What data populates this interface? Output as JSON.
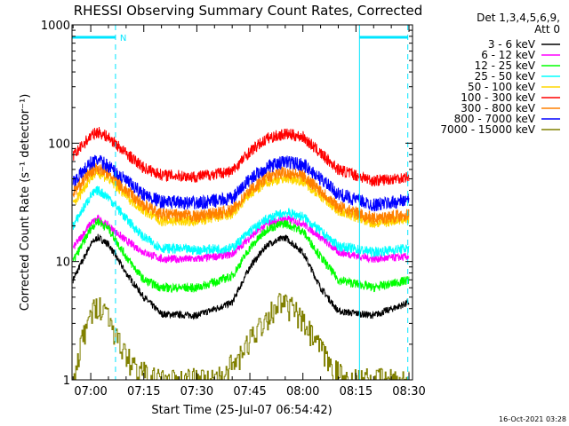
{
  "chart_data": {
    "type": "line",
    "title": "RHESSI Observing Summary Count Rates, Corrected",
    "xlabel": "Start Time (25-Jul-07 06:54:42)",
    "ylabel": "Corrected Count Rate (s⁻¹ detector⁻¹)",
    "yscale": "log",
    "ylim": [
      1,
      1000
    ],
    "xlim": [
      "06:54:42",
      "08:31:00"
    ],
    "x_ticks": [
      "07:00",
      "07:15",
      "07:30",
      "07:45",
      "08:00",
      "08:15",
      "08:30"
    ],
    "y_ticks": [
      "1",
      "10",
      "100",
      "1000"
    ],
    "legend_header": [
      "Det 1,3,4,5,6,9,",
      "Att 0"
    ],
    "legend_position": "right",
    "timestamp": "16-Oct-2021 03:28",
    "flag_label": "N",
    "flag_intervals": [
      {
        "start": "06:54:42",
        "end": "07:07:00"
      },
      {
        "start": "08:16:00",
        "end": "08:29:40"
      }
    ],
    "vertical_markers": [
      {
        "time": "06:54:42",
        "style": "solid"
      },
      {
        "time": "07:07:00",
        "style": "dashed"
      },
      {
        "time": "08:16:00",
        "style": "solid"
      },
      {
        "time": "08:29:40",
        "style": "dashed"
      }
    ],
    "series": [
      {
        "name": "3 - 6 keV",
        "color": "#000000",
        "points": [
          [
            "06:55",
            7
          ],
          [
            "07:00",
            14
          ],
          [
            "07:02",
            16
          ],
          [
            "07:05",
            14
          ],
          [
            "07:10",
            8
          ],
          [
            "07:15",
            5
          ],
          [
            "07:20",
            3.6
          ],
          [
            "07:30",
            3.5
          ],
          [
            "07:40",
            4.5
          ],
          [
            "07:45",
            9
          ],
          [
            "07:50",
            14
          ],
          [
            "07:55",
            16
          ],
          [
            "08:00",
            12
          ],
          [
            "08:05",
            6
          ],
          [
            "08:10",
            3.8
          ],
          [
            "08:20",
            3.5
          ],
          [
            "08:30",
            4.5
          ]
        ]
      },
      {
        "name": "6 - 12 keV",
        "color": "#ff00ff",
        "points": [
          [
            "06:55",
            13
          ],
          [
            "07:00",
            21
          ],
          [
            "07:02",
            23
          ],
          [
            "07:05",
            20
          ],
          [
            "07:10",
            15
          ],
          [
            "07:15",
            12
          ],
          [
            "07:20",
            10.5
          ],
          [
            "07:30",
            10.5
          ],
          [
            "07:40",
            11.5
          ],
          [
            "07:45",
            16
          ],
          [
            "07:50",
            21
          ],
          [
            "07:55",
            23
          ],
          [
            "08:00",
            21
          ],
          [
            "08:05",
            16
          ],
          [
            "08:10",
            12
          ],
          [
            "08:20",
            10.5
          ],
          [
            "08:30",
            11
          ]
        ]
      },
      {
        "name": "12 - 25 keV",
        "color": "#00ff00",
        "points": [
          [
            "06:55",
            10
          ],
          [
            "07:00",
            19
          ],
          [
            "07:02",
            22
          ],
          [
            "07:05",
            19
          ],
          [
            "07:10",
            11
          ],
          [
            "07:15",
            7
          ],
          [
            "07:20",
            6
          ],
          [
            "07:30",
            6
          ],
          [
            "07:40",
            7.5
          ],
          [
            "07:45",
            13
          ],
          [
            "07:50",
            19
          ],
          [
            "07:55",
            21
          ],
          [
            "08:00",
            18
          ],
          [
            "08:05",
            11
          ],
          [
            "08:10",
            7
          ],
          [
            "08:20",
            6
          ],
          [
            "08:30",
            7
          ]
        ]
      },
      {
        "name": "25 - 50 keV",
        "color": "#00ffff",
        "points": [
          [
            "06:55",
            20
          ],
          [
            "07:00",
            36
          ],
          [
            "07:02",
            40
          ],
          [
            "07:05",
            35
          ],
          [
            "07:10",
            23
          ],
          [
            "07:15",
            16
          ],
          [
            "07:20",
            13
          ],
          [
            "07:30",
            12.5
          ],
          [
            "07:40",
            13
          ],
          [
            "07:45",
            18
          ],
          [
            "07:50",
            23
          ],
          [
            "07:55",
            26
          ],
          [
            "08:00",
            24
          ],
          [
            "08:05",
            18
          ],
          [
            "08:10",
            13.5
          ],
          [
            "08:20",
            12
          ],
          [
            "08:30",
            13
          ]
        ]
      },
      {
        "name": "50 - 100 keV",
        "color": "#ffd700",
        "points": [
          [
            "06:55",
            30
          ],
          [
            "07:00",
            52
          ],
          [
            "07:02",
            57
          ],
          [
            "07:05",
            50
          ],
          [
            "07:10",
            36
          ],
          [
            "07:15",
            27
          ],
          [
            "07:20",
            22
          ],
          [
            "07:30",
            22
          ],
          [
            "07:40",
            25
          ],
          [
            "07:45",
            37
          ],
          [
            "07:50",
            47
          ],
          [
            "07:55",
            51
          ],
          [
            "08:00",
            48
          ],
          [
            "08:05",
            36
          ],
          [
            "08:10",
            27
          ],
          [
            "08:20",
            21
          ],
          [
            "08:30",
            23
          ]
        ]
      },
      {
        "name": "100 - 300 keV",
        "color": "#ff0000",
        "points": [
          [
            "06:55",
            78
          ],
          [
            "07:00",
            115
          ],
          [
            "07:02",
            125
          ],
          [
            "07:05",
            112
          ],
          [
            "07:10",
            82
          ],
          [
            "07:15",
            62
          ],
          [
            "07:20",
            54
          ],
          [
            "07:30",
            52
          ],
          [
            "07:40",
            58
          ],
          [
            "07:45",
            85
          ],
          [
            "07:50",
            110
          ],
          [
            "07:55",
            120
          ],
          [
            "08:00",
            113
          ],
          [
            "08:05",
            82
          ],
          [
            "08:10",
            60
          ],
          [
            "08:20",
            48
          ],
          [
            "08:30",
            52
          ]
        ]
      },
      {
        "name": "300 - 800 keV",
        "color": "#ff8000",
        "points": [
          [
            "06:55",
            38
          ],
          [
            "07:00",
            58
          ],
          [
            "07:02",
            62
          ],
          [
            "07:05",
            55
          ],
          [
            "07:10",
            40
          ],
          [
            "07:15",
            30
          ],
          [
            "07:20",
            25
          ],
          [
            "07:30",
            24
          ],
          [
            "07:40",
            27
          ],
          [
            "07:45",
            40
          ],
          [
            "07:50",
            52
          ],
          [
            "07:55",
            57
          ],
          [
            "08:00",
            53
          ],
          [
            "08:05",
            40
          ],
          [
            "08:10",
            29
          ],
          [
            "08:20",
            23
          ],
          [
            "08:30",
            25
          ]
        ]
      },
      {
        "name": "800 - 7000 keV",
        "color": "#0000ff",
        "points": [
          [
            "06:55",
            47
          ],
          [
            "07:00",
            68
          ],
          [
            "07:02",
            72
          ],
          [
            "07:05",
            64
          ],
          [
            "07:10",
            48
          ],
          [
            "07:15",
            37
          ],
          [
            "07:20",
            32
          ],
          [
            "07:30",
            31
          ],
          [
            "07:40",
            34
          ],
          [
            "07:45",
            50
          ],
          [
            "07:50",
            63
          ],
          [
            "07:55",
            70
          ],
          [
            "08:00",
            66
          ],
          [
            "08:05",
            50
          ],
          [
            "08:10",
            37
          ],
          [
            "08:20",
            30
          ],
          [
            "08:30",
            33
          ]
        ]
      },
      {
        "name": "7000 - 15000 keV",
        "color": "#808000",
        "points": [
          [
            "06:55",
            1
          ],
          [
            "06:58",
            2.5
          ],
          [
            "07:00",
            3.5
          ],
          [
            "07:02",
            4.5
          ],
          [
            "07:05",
            3.5
          ],
          [
            "07:08",
            2
          ],
          [
            "07:12",
            1.3
          ],
          [
            "07:18",
            1
          ],
          [
            "07:35",
            1
          ],
          [
            "07:42",
            1.5
          ],
          [
            "07:46",
            2.5
          ],
          [
            "07:50",
            3.5
          ],
          [
            "07:53",
            4.5
          ],
          [
            "07:57",
            4
          ],
          [
            "08:00",
            3
          ],
          [
            "08:04",
            2
          ],
          [
            "08:08",
            1.3
          ],
          [
            "08:12",
            1
          ],
          [
            "08:30",
            1
          ]
        ]
      }
    ]
  }
}
